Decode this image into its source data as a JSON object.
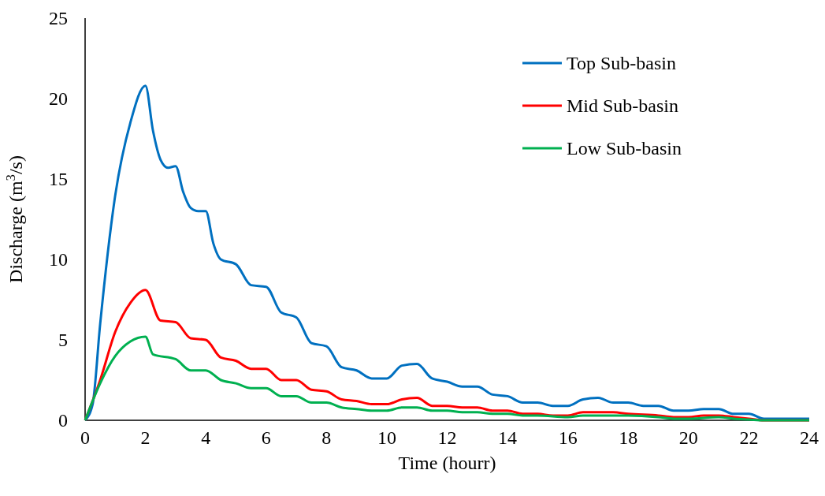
{
  "chart_data": {
    "type": "line",
    "xlabel": "Time (hourr)",
    "ylabel": "Discharge (m$^{3}$/s)",
    "xlim": [
      0,
      24
    ],
    "ylim": [
      0,
      25
    ],
    "xticks": [
      0,
      2,
      4,
      6,
      8,
      10,
      12,
      14,
      16,
      18,
      20,
      22,
      24
    ],
    "yticks": [
      0,
      5,
      10,
      15,
      20,
      25
    ],
    "grid": false,
    "legend": "top right",
    "marker": "none",
    "line_style": "solid",
    "series": [
      {
        "name": "Top Sub-basin",
        "color": "#0070c0",
        "x": [
          0,
          0.25,
          0.5,
          1,
          1.5,
          2,
          2.25,
          2.5,
          2.75,
          3,
          3.25,
          3.5,
          3.75,
          4,
          4.25,
          4.5,
          5,
          5.5,
          6,
          6.5,
          7,
          7.5,
          8,
          8.5,
          9,
          9.5,
          10,
          10.5,
          11,
          11.5,
          12,
          12.5,
          13,
          13.5,
          14,
          14.5,
          15,
          15.5,
          16,
          16.5,
          17,
          17.5,
          18,
          18.5,
          19,
          19.5,
          20,
          20.5,
          21,
          21.5,
          22,
          22.5,
          24
        ],
        "values": [
          0,
          1,
          6,
          14,
          18.5,
          20.8,
          18,
          16.2,
          15.7,
          15.8,
          14.2,
          13.2,
          13,
          13,
          11,
          10,
          9.7,
          8.4,
          8.3,
          6.7,
          6.4,
          4.8,
          4.6,
          3.3,
          3.1,
          2.6,
          2.6,
          3.4,
          3.5,
          2.6,
          2.4,
          2.1,
          2.1,
          1.6,
          1.5,
          1.1,
          1.1,
          0.9,
          0.9,
          1.3,
          1.4,
          1.1,
          1.1,
          0.9,
          0.9,
          0.6,
          0.6,
          0.7,
          0.7,
          0.4,
          0.4,
          0.1,
          0.1
        ]
      },
      {
        "name": "Mid Sub-basin",
        "color": "#ff0000",
        "x": [
          0,
          0.5,
          1,
          1.5,
          2,
          2.5,
          3,
          3.5,
          4,
          4.5,
          5,
          5.5,
          6,
          6.5,
          7,
          7.5,
          8,
          8.5,
          9,
          9.5,
          10,
          10.5,
          11,
          11.5,
          12,
          12.5,
          13,
          13.5,
          14,
          14.5,
          15,
          15.5,
          16,
          16.5,
          17,
          17.5,
          18,
          19,
          19.5,
          20,
          20.5,
          21,
          21.5,
          22,
          22.5,
          24
        ],
        "values": [
          0,
          2.5,
          5.5,
          7.3,
          8.1,
          6.2,
          6.1,
          5.1,
          5,
          3.9,
          3.7,
          3.2,
          3.2,
          2.5,
          2.5,
          1.9,
          1.8,
          1.3,
          1.2,
          1,
          1,
          1.3,
          1.4,
          0.9,
          0.9,
          0.8,
          0.8,
          0.6,
          0.6,
          0.4,
          0.4,
          0.3,
          0.3,
          0.5,
          0.5,
          0.5,
          0.4,
          0.3,
          0.2,
          0.2,
          0.3,
          0.3,
          0.2,
          0.1,
          0,
          0
        ]
      },
      {
        "name": "Low Sub-basin",
        "color": "#00b050",
        "x": [
          0,
          0.5,
          1,
          1.5,
          2,
          2.25,
          3,
          3.5,
          4,
          4.5,
          5,
          5.5,
          6,
          6.5,
          7,
          7.5,
          8,
          8.5,
          9,
          9.5,
          10,
          10.5,
          11,
          11.5,
          12,
          12.5,
          13,
          13.5,
          14,
          14.5,
          15,
          16,
          16.5,
          17,
          18,
          19,
          19.5,
          20,
          21,
          21.5,
          22,
          22.5,
          24
        ],
        "values": [
          0,
          2.3,
          4,
          4.9,
          5.2,
          4.1,
          3.8,
          3.1,
          3.1,
          2.5,
          2.3,
          2,
          2,
          1.5,
          1.5,
          1.1,
          1.1,
          0.8,
          0.7,
          0.6,
          0.6,
          0.8,
          0.8,
          0.6,
          0.6,
          0.5,
          0.5,
          0.4,
          0.4,
          0.3,
          0.3,
          0.2,
          0.3,
          0.3,
          0.3,
          0.2,
          0.1,
          0.1,
          0.2,
          0.1,
          0.05,
          0,
          0
        ]
      }
    ]
  }
}
